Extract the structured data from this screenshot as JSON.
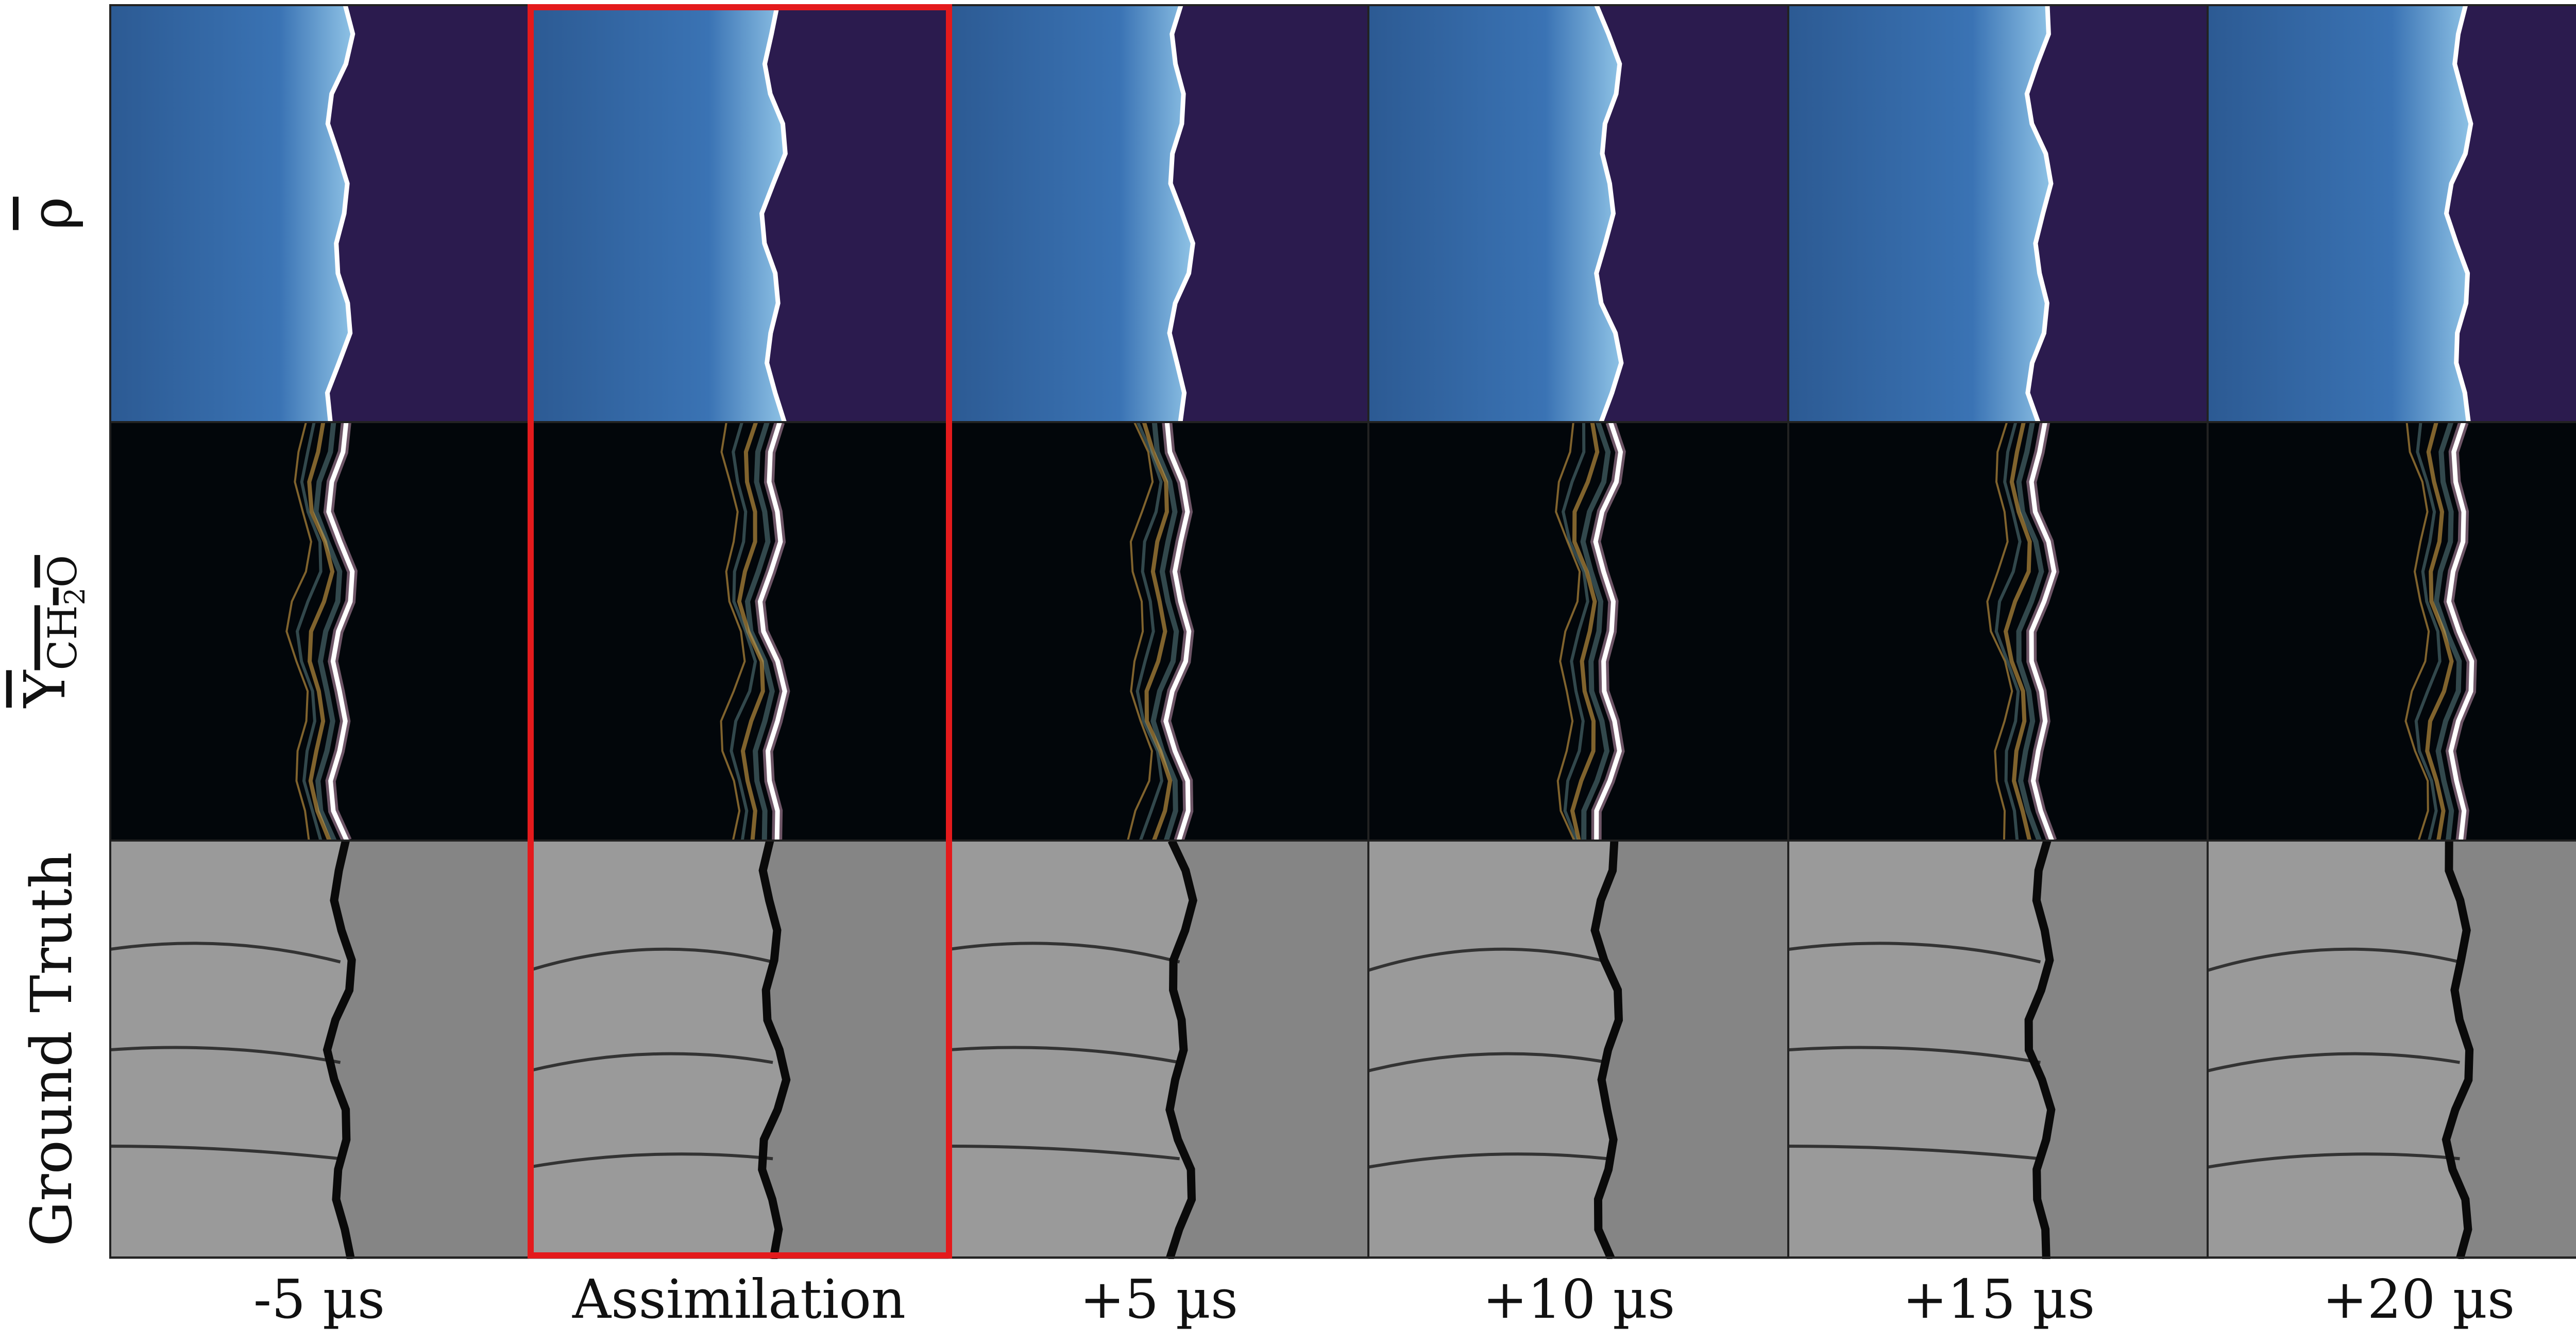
{
  "figure": {
    "row_labels": [
      {
        "id": "rho",
        "symbol": "ρ",
        "note": "overline"
      },
      {
        "id": "ych2o",
        "text_main": "Y",
        "text_sub": "CH",
        "text_sub2": "2",
        "text_tail": "O",
        "note": "overline"
      },
      {
        "id": "ground-truth",
        "text": "Ground Truth"
      }
    ],
    "column_labels": [
      "-5 µs",
      "Assimilation",
      "+5 µs",
      "+10 µs",
      "+15 µs",
      "+20 µs"
    ],
    "highlighted_column": "Assimilation",
    "colors": {
      "highlight": "#e41a1c",
      "density_bg": "#2b1b4e",
      "density_field": "#2e5a94",
      "species_bg": "#02060a",
      "species_field": "#d99a3a",
      "ground_truth_bg": "#858585",
      "front_line": "#ffffff"
    }
  }
}
